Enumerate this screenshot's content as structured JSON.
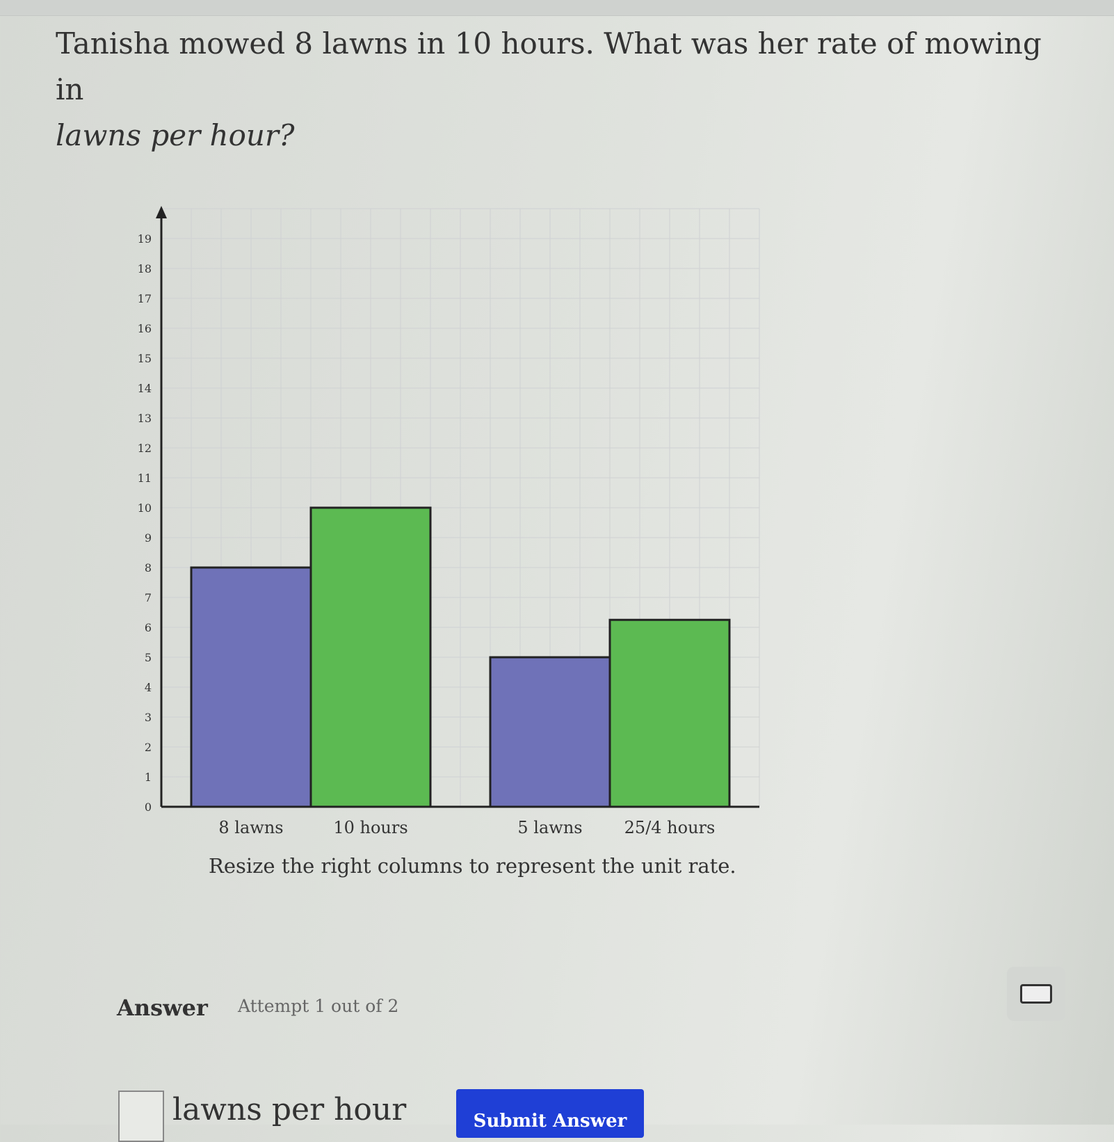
{
  "question": {
    "text": "Tanisha mowed 8 lawns in 10 hours. What was her rate of mowing in",
    "italic": "lawns per hour?"
  },
  "chart_data": {
    "type": "bar",
    "categories": [
      "8 lawns",
      "10 hours",
      "5 lawns",
      "25/4 hours"
    ],
    "values": [
      8,
      10,
      5,
      6.25
    ],
    "colors": [
      "#6f72b8",
      "#5cba52",
      "#6f72b8",
      "#5cba52"
    ],
    "y_ticks": [
      0,
      1,
      2,
      3,
      4,
      5,
      6,
      7,
      8,
      9,
      10,
      11,
      12,
      13,
      14,
      15,
      16,
      17,
      18,
      19
    ],
    "ylim": [
      0,
      20
    ],
    "grid": true
  },
  "prompt": "Resize the right columns to represent the unit rate.",
  "answer": {
    "label": "Answer",
    "attempt": "Attempt 1 out of 2",
    "input_value": "",
    "unit": "lawns per hour",
    "submit_label": "Submit Answer",
    "keyboard_icon": "keyboard-icon"
  }
}
